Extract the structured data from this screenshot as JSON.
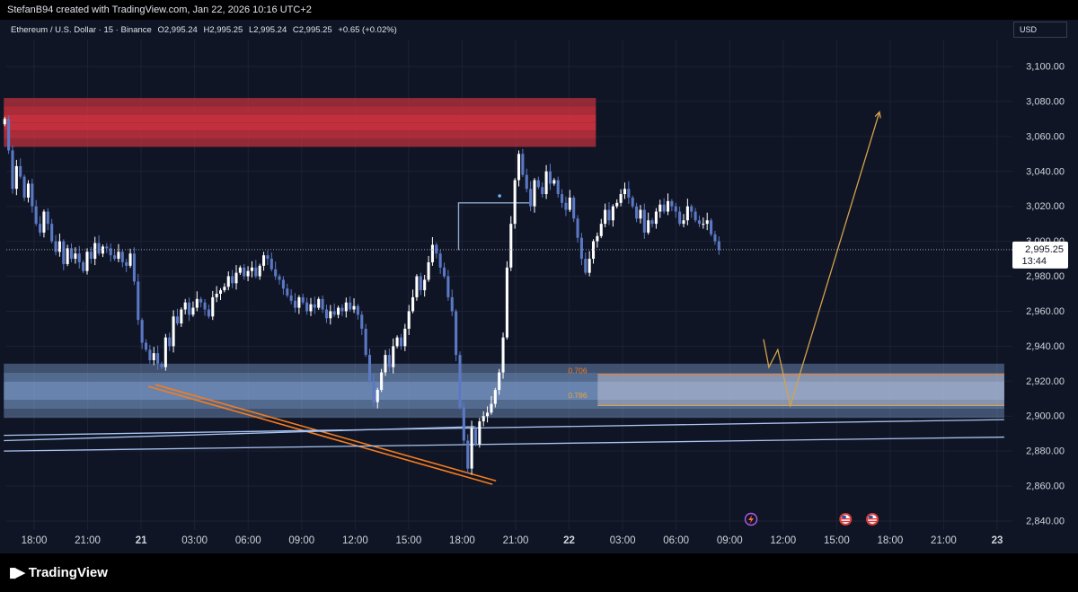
{
  "header": {
    "created_by": "StefanB94 created with TradingView.com, Jan 22, 2026 10:16 UTC+2"
  },
  "legend": {
    "symbol": "Ethereum / U.S. Dollar · 15 · Binance",
    "open": "O2,995.24",
    "high": "H2,995.25",
    "low": "L2,995.24",
    "close": "C2,995.25",
    "change": "+0.65 (+0.02%)"
  },
  "currency": "USD",
  "brand": "TradingView",
  "colors": {
    "background": "#0f1525",
    "candle_up": "#ffffff",
    "candle_down": "#5b78c4",
    "supply_zone": "#d8343f",
    "demand_zone": "#8fb3e8",
    "trendline": "#f57c1f",
    "projection": "#d4a24c",
    "channel": "#a9c4f0"
  },
  "chart_data": {
    "type": "candlestick",
    "yticks": [
      "3,100.00",
      "3,080.00",
      "3,060.00",
      "3,040.00",
      "3,020.00",
      "3,000.00",
      "2,980.00",
      "2,960.00",
      "2,940.00",
      "2,920.00",
      "2,900.00",
      "2,880.00",
      "2,860.00",
      "2,840.00"
    ],
    "ytick_values": [
      3100,
      3080,
      3060,
      3040,
      3020,
      3000,
      2980,
      2960,
      2940,
      2920,
      2900,
      2880,
      2860,
      2840
    ],
    "xticks": [
      "18:00",
      "21:00",
      "21",
      "03:00",
      "06:00",
      "09:00",
      "12:00",
      "15:00",
      "18:00",
      "21:00",
      "22",
      "03:00",
      "06:00",
      "09:00",
      "12:00",
      "15:00",
      "18:00",
      "21:00",
      "23"
    ],
    "xtick_hours": [
      18,
      21,
      24,
      27,
      30,
      33,
      36,
      39,
      42,
      45,
      48,
      51,
      54,
      57,
      60,
      63,
      66,
      69,
      72
    ],
    "ylim": [
      2834,
      3112
    ],
    "xlim_hours": [
      16.3,
      72.4
    ],
    "last_price": "2,995.25",
    "last_price_value": 2995.25,
    "countdown": "13:44",
    "fib_labels": [
      {
        "text": "0.706",
        "price": 2926
      },
      {
        "text": "0.786",
        "price": 2912
      }
    ],
    "supply_zone": {
      "from": 3054,
      "to": 3082,
      "start_hour": 16.3,
      "end_hour": 49.5
    },
    "demand_zone": {
      "from": 2899,
      "to": 2930,
      "start_hour": 16.3,
      "end_hour": 72.4
    },
    "fib_box": {
      "from": 2906,
      "to": 2924,
      "start_hour": 49.6,
      "end_hour": 72.4
    },
    "trendlines": [
      {
        "name": "orange-trendline-1",
        "points": [
          [
            24.4,
            2917
          ],
          [
            43.7,
            2861
          ]
        ]
      },
      {
        "name": "orange-trendline-2",
        "points": [
          [
            24.8,
            2918
          ],
          [
            43.9,
            2863
          ]
        ]
      },
      {
        "name": "channel-line-1",
        "points": [
          [
            16.3,
            2889
          ],
          [
            72.4,
            2898
          ]
        ]
      },
      {
        "name": "channel-line-2",
        "points": [
          [
            16.3,
            2880
          ],
          [
            72.4,
            2888
          ]
        ]
      },
      {
        "name": "channel-line-3",
        "points": [
          [
            16.3,
            2886
          ],
          [
            42.7,
            2894
          ]
        ]
      }
    ],
    "step_marker": [
      [
        41.8,
        2995
      ],
      [
        41.8,
        3022
      ],
      [
        45.9,
        3022
      ]
    ],
    "projection_path": [
      [
        58.9,
        2944
      ],
      [
        59.2,
        2928
      ],
      [
        59.7,
        2938
      ],
      [
        60.4,
        2906
      ],
      [
        65.4,
        3074
      ]
    ],
    "event_icons": [
      {
        "name": "lightning-icon",
        "hour": 58.2
      },
      {
        "name": "us-flag-icon-1",
        "hour": 63.5
      },
      {
        "name": "us-flag-icon-2",
        "hour": 65.0
      }
    ],
    "closes": [
      3070,
      3052,
      3030,
      3043,
      3037,
      3025,
      3033,
      3020,
      3010,
      3005,
      3017,
      3010,
      3000,
      2994,
      3000,
      2987,
      2996,
      2990,
      2993,
      2988,
      2983,
      2994,
      2990,
      2999,
      2993,
      2997,
      2996,
      2992,
      2990,
      2994,
      2988,
      2986,
      2993,
      2977,
      2955,
      2942,
      2938,
      2932,
      2936,
      2930,
      2928,
      2945,
      2940,
      2957,
      2953,
      2961,
      2965,
      2958,
      2962,
      2967,
      2965,
      2961,
      2957,
      2968,
      2970,
      2972,
      2974,
      2980,
      2976,
      2982,
      2985,
      2980,
      2983,
      2985,
      2980,
      2986,
      2992,
      2990,
      2984,
      2980,
      2978,
      2973,
      2969,
      2966,
      2962,
      2968,
      2965,
      2960,
      2964,
      2962,
      2967,
      2961,
      2956,
      2960,
      2958,
      2962,
      2960,
      2965,
      2961,
      2963,
      2958,
      2950,
      2935,
      2920,
      2908,
      2915,
      2925,
      2935,
      2928,
      2940,
      2945,
      2940,
      2950,
      2960,
      2968,
      2980,
      2972,
      2978,
      2988,
      2998,
      2993,
      2985,
      2980,
      2968,
      2960,
      2935,
      2905,
      2886,
      2870,
      2893,
      2884,
      2897,
      2900,
      2902,
      2907,
      2915,
      2925,
      2945,
      2985,
      3010,
      3035,
      3050,
      3038,
      3030,
      3020,
      3035,
      3031,
      3027,
      3040,
      3033,
      3035,
      3027,
      3022,
      3018,
      3025,
      3013,
      3002,
      2990,
      2982,
      2990,
      3000,
      3003,
      3010,
      3018,
      3012,
      3020,
      3022,
      3027,
      3030,
      3025,
      3020,
      3013,
      3018,
      3005,
      3012,
      3010,
      3017,
      3021,
      3017,
      3023,
      3020,
      3017,
      3010,
      3012,
      3020,
      3017,
      3012,
      3010,
      3010,
      3012,
      3004,
      3000,
      2995
    ]
  }
}
